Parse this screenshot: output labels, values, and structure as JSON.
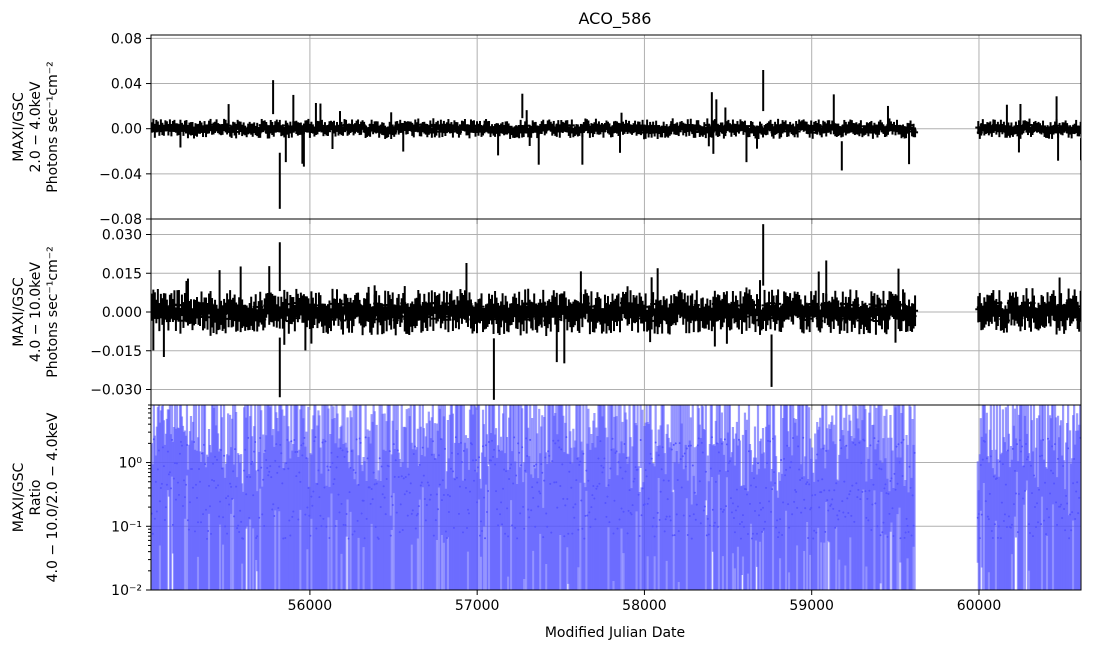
{
  "title": "ACO_586",
  "xlabel": "Modified Julian Date",
  "colors": {
    "lightcurve": "#000000",
    "ratio": "#5555ff",
    "grid": "#b0b0b0"
  },
  "chart_data": [
    {
      "type": "line",
      "panel": "soft",
      "ylabel_lines": [
        "MAXI/GSC",
        "2.0 − 4.0keV",
        "Photons sec⁻¹cm⁻²"
      ],
      "xlim": [
        55050,
        60610
      ],
      "ylim": [
        -0.08,
        0.083
      ],
      "xticks": [
        56000,
        57000,
        58000,
        59000,
        60000
      ],
      "yticks": [
        {
          "value": 0.08,
          "label": "0.08"
        },
        {
          "value": 0.04,
          "label": "0.04"
        },
        {
          "value": 0.0,
          "label": "0.00"
        },
        {
          "value": -0.04,
          "label": "−0.04"
        },
        {
          "value": -0.08,
          "label": "−0.08"
        }
      ],
      "grid": true,
      "notable_points": [
        {
          "x": 55780,
          "y": 0.043
        },
        {
          "x": 55820,
          "y": -0.071
        },
        {
          "x": 57270,
          "y": 0.031
        },
        {
          "x": 58710,
          "y": 0.052
        },
        {
          "x": 59180,
          "y": -0.037
        },
        {
          "x": 60610,
          "y": -0.028
        }
      ],
      "gap": [
        59620,
        59990
      ]
    },
    {
      "type": "line",
      "panel": "hard",
      "ylabel_lines": [
        "MAXI/GSC",
        "4.0 − 10.0keV",
        "Photons sec⁻¹cm⁻²"
      ],
      "xlim": [
        55050,
        60610
      ],
      "ylim": [
        -0.036,
        0.036
      ],
      "xticks": [
        56000,
        57000,
        58000,
        59000,
        60000
      ],
      "yticks": [
        {
          "value": 0.03,
          "label": "0.030"
        },
        {
          "value": 0.015,
          "label": "0.015"
        },
        {
          "value": 0.0,
          "label": "0.000"
        },
        {
          "value": -0.015,
          "label": "−0.015"
        },
        {
          "value": -0.03,
          "label": "−0.030"
        }
      ],
      "grid": true,
      "notable_points": [
        {
          "x": 55820,
          "y": 0.027
        },
        {
          "x": 55820,
          "y": -0.033
        },
        {
          "x": 57100,
          "y": -0.034
        },
        {
          "x": 58710,
          "y": 0.034
        },
        {
          "x": 58760,
          "y": -0.029
        }
      ],
      "gap": [
        59620,
        59990
      ]
    },
    {
      "type": "scatter",
      "panel": "ratio",
      "ylabel_lines": [
        "MAXI/GSC",
        "Ratio",
        "4.0 − 10.0/2.0 − 4.0keV"
      ],
      "xlim": [
        55050,
        60610
      ],
      "ylim": [
        0.01,
        8
      ],
      "yscale": "log",
      "xticks": [
        {
          "value": 56000,
          "label": "56000"
        },
        {
          "value": 57000,
          "label": "57000"
        },
        {
          "value": 58000,
          "label": "58000"
        },
        {
          "value": 59000,
          "label": "59000"
        },
        {
          "value": 60000,
          "label": "60000"
        }
      ],
      "yticks": [
        {
          "value": 1,
          "label": "10⁰"
        },
        {
          "value": 0.1,
          "label": "10⁻¹"
        },
        {
          "value": 0.01,
          "label": "10⁻²"
        }
      ],
      "grid": true,
      "gap": [
        59620,
        59990
      ]
    }
  ]
}
